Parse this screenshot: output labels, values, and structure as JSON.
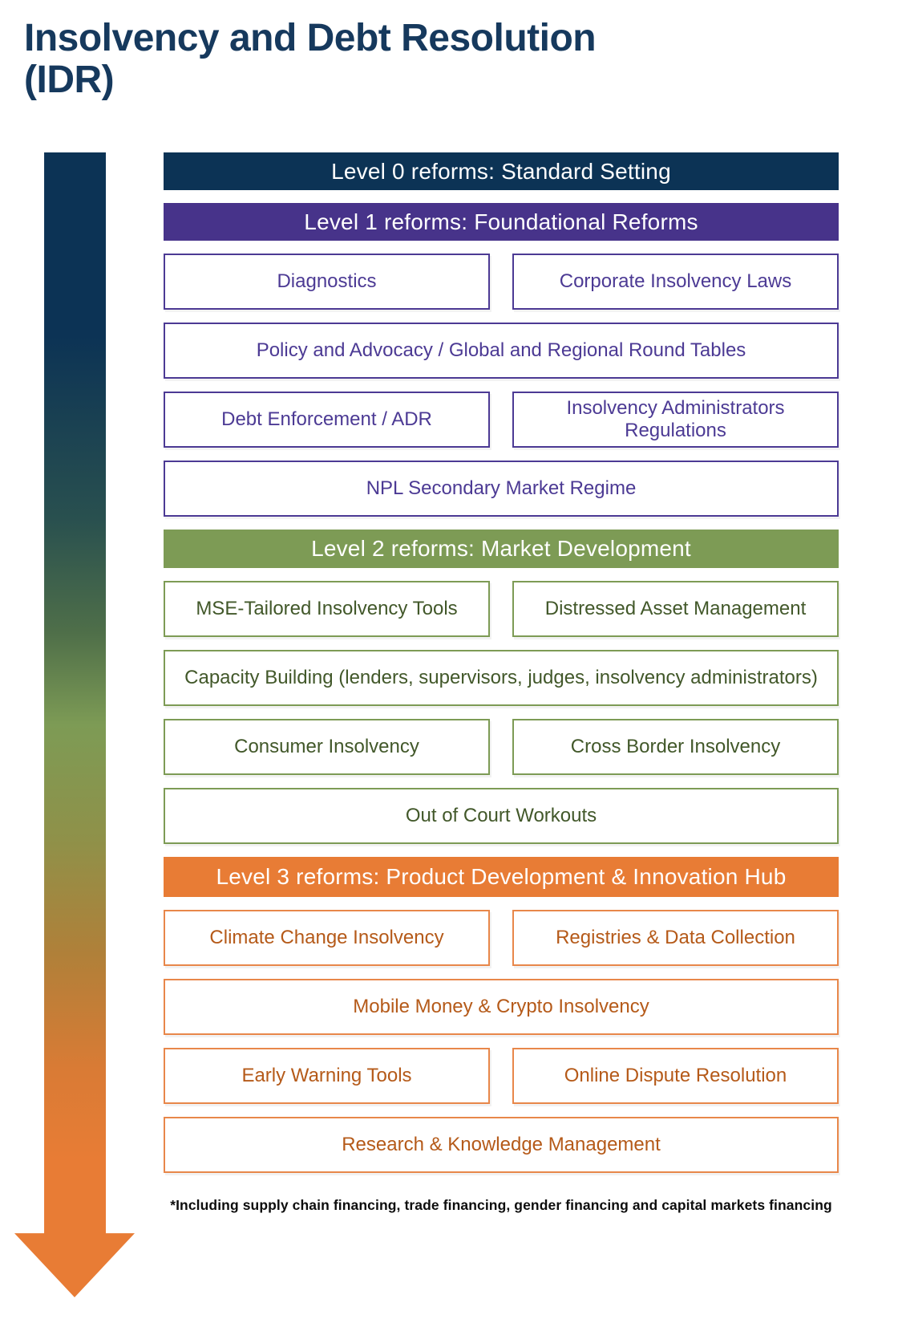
{
  "title": {
    "line1": "Insolvency and Debt Resolution",
    "line2": "(IDR)"
  },
  "footnote": "*Including supply chain financing, trade financing, gender financing and capital markets financing",
  "colors": {
    "title_navy": "#16395d",
    "level0_header_bg": "#0c3355",
    "level1_header_bg": "#47338a",
    "level1_box_border_text": "#4c3a94",
    "level2_header_bg": "#7d9b55",
    "level2_box_text": "#42582a",
    "level3_header_bg": "#e87c35",
    "level3_box_border": "#e8874a",
    "level3_box_text": "#b55a19",
    "header_text": "#ffffff",
    "arrow_gradient_top": "#0c3355",
    "arrow_gradient_middle": "#7d9b55",
    "arrow_gradient_bottom": "#e87c35"
  },
  "arrow": {
    "direction": "down",
    "style": "navy-to-green-to-orange gradient"
  },
  "levels": [
    {
      "name": "level0",
      "header": "Level 0 reforms: Standard Setting",
      "boxes": []
    },
    {
      "name": "level1",
      "header": "Level 1 reforms: Foundational Reforms",
      "boxes": [
        {
          "label": "Diagnostics",
          "span": "half"
        },
        {
          "label": "Corporate Insolvency Laws",
          "span": "half"
        },
        {
          "label": "Policy and Advocacy / Global and Regional Round Tables",
          "span": "full"
        },
        {
          "label": "Debt Enforcement / ADR",
          "span": "half"
        },
        {
          "label": "Insolvency Administrators Regulations",
          "span": "half"
        },
        {
          "label": "NPL Secondary Market Regime",
          "span": "full"
        }
      ]
    },
    {
      "name": "level2",
      "header": "Level 2 reforms: Market Development",
      "boxes": [
        {
          "label": "MSE-Tailored  Insolvency Tools",
          "span": "half"
        },
        {
          "label": "Distressed Asset Management",
          "span": "half"
        },
        {
          "label": "Capacity Building (lenders, supervisors, judges, insolvency administrators)",
          "span": "full"
        },
        {
          "label": "Consumer Insolvency",
          "span": "half"
        },
        {
          "label": "Cross Border Insolvency",
          "span": "half"
        },
        {
          "label": "Out of Court Workouts",
          "span": "full"
        }
      ]
    },
    {
      "name": "level3",
      "header": "Level 3 reforms: Product Development & Innovation Hub",
      "boxes": [
        {
          "label": "Climate Change Insolvency",
          "span": "half"
        },
        {
          "label": "Registries & Data Collection",
          "span": "half"
        },
        {
          "label": "Mobile Money & Crypto Insolvency",
          "span": "full"
        },
        {
          "label": "Early Warning Tools",
          "span": "half"
        },
        {
          "label": "Online Dispute Resolution",
          "span": "half"
        },
        {
          "label": "Research & Knowledge Management",
          "span": "full"
        }
      ]
    }
  ]
}
